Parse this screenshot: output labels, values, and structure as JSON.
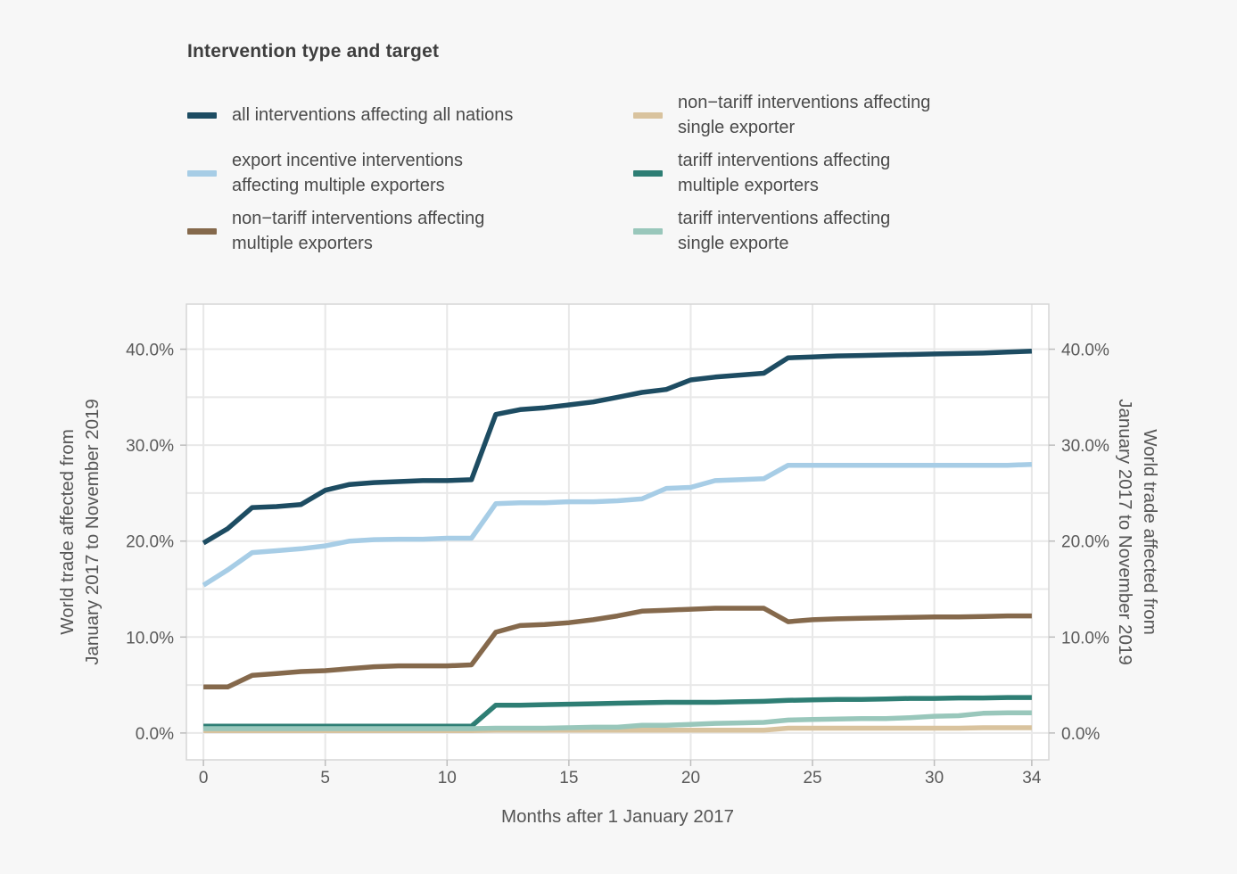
{
  "title": "Intervention type and target",
  "colors": {
    "background": "#f7f7f7",
    "panel": "#ffffff",
    "grid": "#e8e8e8",
    "panel_border": "#d6d6d6",
    "tick_mark": "#bdbdbd",
    "tick_text": "#5a5a5a",
    "axis_title_text": "#555555",
    "title_text": "#3e3e3e",
    "legend_text": "#4a4a4a"
  },
  "legend": {
    "columns": [
      [
        {
          "id": "all-interventions",
          "lines": [
            "all interventions affecting all nations"
          ],
          "color": "#1d4c62"
        },
        {
          "id": "export-incentive-multiple",
          "lines": [
            "export incentive interventions",
            "affecting multiple exporters"
          ],
          "color": "#a7cde6"
        },
        {
          "id": "non-tariff-multiple",
          "lines": [
            "non−tariff interventions affecting",
            "multiple exporters"
          ],
          "color": "#85694c"
        }
      ],
      [
        {
          "id": "non-tariff-single",
          "lines": [
            "non−tariff interventions affecting",
            "single exporter"
          ],
          "color": "#d9c39e"
        },
        {
          "id": "tariff-multiple",
          "lines": [
            "tariff interventions affecting",
            "multiple exporters"
          ],
          "color": "#2e7e74"
        },
        {
          "id": "tariff-single",
          "lines": [
            "tariff interventions affecting",
            "single exporte"
          ],
          "color": "#99c7bb"
        }
      ]
    ]
  },
  "axes": {
    "x_label": "Months after 1 January 2017",
    "y_label_lines": [
      "World trade affected from",
      "January 2017 to November 2019"
    ],
    "x_ticks": [
      {
        "v": 0,
        "label": "0"
      },
      {
        "v": 5,
        "label": "5"
      },
      {
        "v": 10,
        "label": "10"
      },
      {
        "v": 15,
        "label": "15"
      },
      {
        "v": 20,
        "label": "20"
      },
      {
        "v": 25,
        "label": "25"
      },
      {
        "v": 30,
        "label": "30"
      },
      {
        "v": 34,
        "label": "34"
      }
    ],
    "y_ticks": [
      {
        "v": 0,
        "label": "0.0%"
      },
      {
        "v": 10,
        "label": "10.0%"
      },
      {
        "v": 20,
        "label": "20.0%"
      },
      {
        "v": 30,
        "label": "30.0%"
      },
      {
        "v": 40,
        "label": "40.0%"
      }
    ]
  },
  "chart_data": {
    "type": "line",
    "title": "Intervention type and target",
    "xlabel": "Months after 1 January 2017",
    "ylabel": "World trade affected from January 2017 to November 2019",
    "ylabel_right": "World trade affected from January 2017 to November 2019",
    "legend_position": "top",
    "grid": true,
    "xlim": [
      -0.7,
      34.7
    ],
    "ylim": [
      -2.8,
      44.7
    ],
    "x_gridlines": [
      0,
      5,
      10,
      15,
      20,
      25,
      30,
      34
    ],
    "y_gridlines": [
      0,
      5,
      10,
      15,
      20,
      25,
      30,
      35,
      40
    ],
    "x": [
      0,
      1,
      2,
      3,
      4,
      5,
      6,
      7,
      8,
      9,
      10,
      11,
      12,
      13,
      14,
      15,
      16,
      17,
      18,
      19,
      20,
      21,
      22,
      23,
      24,
      25,
      26,
      27,
      28,
      29,
      30,
      31,
      32,
      33,
      34
    ],
    "y_unit": "percent of world trade",
    "series": [
      {
        "name": "all interventions affecting all nations",
        "color": "#1d4c62",
        "values": [
          19.8,
          21.3,
          23.5,
          23.6,
          23.8,
          25.3,
          25.9,
          26.1,
          26.2,
          26.3,
          26.3,
          26.4,
          33.2,
          33.7,
          33.9,
          34.2,
          34.5,
          35.0,
          35.5,
          35.8,
          36.8,
          37.1,
          37.3,
          37.5,
          39.1,
          39.2,
          39.3,
          39.35,
          39.4,
          39.45,
          39.5,
          39.55,
          39.6,
          39.7,
          39.8
        ]
      },
      {
        "name": "export incentive interventions affecting multiple exporters",
        "color": "#a7cde6",
        "values": [
          15.4,
          17.0,
          18.8,
          19.0,
          19.2,
          19.5,
          20.0,
          20.15,
          20.2,
          20.2,
          20.3,
          20.3,
          23.9,
          24.0,
          24.0,
          24.1,
          24.1,
          24.2,
          24.4,
          25.5,
          25.6,
          26.3,
          26.4,
          26.5,
          27.9,
          27.9,
          27.9,
          27.9,
          27.9,
          27.9,
          27.9,
          27.9,
          27.9,
          27.9,
          28.0
        ]
      },
      {
        "name": "non−tariff interventions affecting multiple exporters",
        "color": "#85694c",
        "values": [
          4.8,
          4.8,
          6.0,
          6.2,
          6.4,
          6.5,
          6.7,
          6.9,
          7.0,
          7.0,
          7.0,
          7.1,
          10.5,
          11.2,
          11.3,
          11.5,
          11.8,
          12.2,
          12.7,
          12.8,
          12.9,
          13.0,
          13.0,
          13.0,
          11.6,
          11.8,
          11.9,
          11.95,
          12.0,
          12.05,
          12.1,
          12.1,
          12.15,
          12.2,
          12.2
        ]
      },
      {
        "name": "non−tariff interventions affecting single exporter",
        "color": "#d9c39e",
        "values": [
          0.25,
          0.25,
          0.25,
          0.25,
          0.25,
          0.25,
          0.25,
          0.25,
          0.25,
          0.25,
          0.25,
          0.25,
          0.3,
          0.3,
          0.3,
          0.3,
          0.3,
          0.3,
          0.3,
          0.3,
          0.3,
          0.3,
          0.3,
          0.3,
          0.5,
          0.5,
          0.5,
          0.5,
          0.5,
          0.5,
          0.5,
          0.5,
          0.55,
          0.55,
          0.55
        ]
      },
      {
        "name": "tariff interventions affecting multiple exporters",
        "color": "#2e7e74",
        "values": [
          0.7,
          0.7,
          0.7,
          0.7,
          0.7,
          0.7,
          0.7,
          0.7,
          0.7,
          0.7,
          0.7,
          0.7,
          2.9,
          2.9,
          2.95,
          3.0,
          3.05,
          3.1,
          3.15,
          3.2,
          3.2,
          3.2,
          3.25,
          3.3,
          3.4,
          3.45,
          3.5,
          3.5,
          3.55,
          3.6,
          3.6,
          3.65,
          3.65,
          3.7,
          3.7
        ]
      },
      {
        "name": "tariff interventions affecting single exporte",
        "color": "#99c7bb",
        "values": [
          0.45,
          0.45,
          0.45,
          0.45,
          0.45,
          0.45,
          0.45,
          0.45,
          0.45,
          0.45,
          0.45,
          0.45,
          0.5,
          0.5,
          0.5,
          0.55,
          0.6,
          0.6,
          0.8,
          0.8,
          0.9,
          1.0,
          1.05,
          1.1,
          1.35,
          1.4,
          1.45,
          1.5,
          1.5,
          1.6,
          1.75,
          1.8,
          2.05,
          2.1,
          2.1
        ]
      }
    ]
  }
}
